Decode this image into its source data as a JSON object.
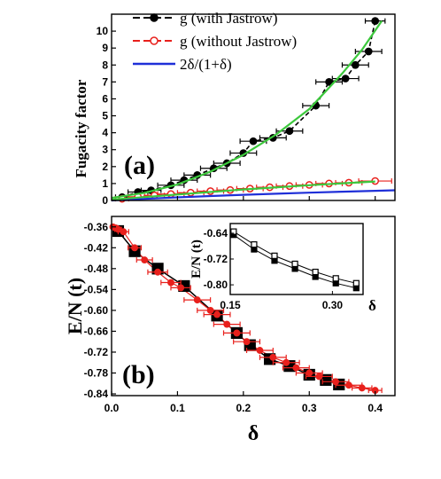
{
  "chart_data": [
    {
      "id": "panel-a",
      "type": "line",
      "panel_label": "(a)",
      "xlabel": "",
      "ylabel": "Fugacity factor",
      "xlim": [
        0.0,
        0.43
      ],
      "ylim": [
        0,
        11
      ],
      "yticks": [
        0,
        1,
        2,
        3,
        4,
        5,
        6,
        7,
        8,
        9,
        10
      ],
      "legend_position": "top-left",
      "series": [
        {
          "name": "g (with Jastrow)",
          "marker": "filled-circle",
          "line": "dashed",
          "color": "#000000",
          "x": [
            0.016,
            0.04,
            0.06,
            0.09,
            0.11,
            0.13,
            0.155,
            0.175,
            0.2,
            0.215,
            0.245,
            0.27,
            0.31,
            0.33,
            0.355,
            0.37,
            0.39,
            0.4
          ],
          "y": [
            0.2,
            0.5,
            0.6,
            0.9,
            1.2,
            1.5,
            1.9,
            2.2,
            2.8,
            3.5,
            3.7,
            4.1,
            5.6,
            7.0,
            7.2,
            8.0,
            8.8,
            10.6
          ],
          "xerr": [
            0.01,
            0.015,
            0.015,
            0.02,
            0.02,
            0.02,
            0.02,
            0.02,
            0.02,
            0.02,
            0.02,
            0.02,
            0.02,
            0.02,
            0.02,
            0.02,
            0.02,
            0.015
          ]
        },
        {
          "name": "g (without Jastrow)",
          "marker": "open-circle",
          "line": "dashed",
          "color": "#e8201c",
          "x": [
            0.016,
            0.04,
            0.065,
            0.09,
            0.12,
            0.15,
            0.18,
            0.21,
            0.24,
            0.27,
            0.3,
            0.33,
            0.36,
            0.4
          ],
          "y": [
            0.1,
            0.22,
            0.3,
            0.38,
            0.46,
            0.55,
            0.62,
            0.7,
            0.78,
            0.85,
            0.92,
            1.0,
            1.05,
            1.15
          ],
          "xerr": [
            0.01,
            0.015,
            0.015,
            0.02,
            0.02,
            0.02,
            0.02,
            0.02,
            0.02,
            0.02,
            0.02,
            0.02,
            0.02,
            0.025
          ]
        },
        {
          "name": "2δ/(1+δ)",
          "marker": "none",
          "line": "solid",
          "color": "#1f2fd8",
          "x": [
            0.0,
            0.05,
            0.1,
            0.15,
            0.2,
            0.25,
            0.3,
            0.35,
            0.4,
            0.43
          ],
          "y": [
            0.0,
            0.095,
            0.182,
            0.261,
            0.333,
            0.4,
            0.462,
            0.519,
            0.571,
            0.601
          ]
        },
        {
          "name": "",
          "marker": "none",
          "line": "solid",
          "color": "#3cc83c",
          "x": [
            0.0,
            0.05,
            0.1,
            0.15,
            0.2,
            0.25,
            0.3,
            0.35,
            0.38,
            0.41
          ],
          "y": [
            0.15,
            0.45,
            0.95,
            1.7,
            2.7,
            3.9,
            5.4,
            7.5,
            8.9,
            10.6
          ]
        },
        {
          "name": "",
          "marker": "none",
          "line": "solid",
          "color": "#3cc83c",
          "x": [
            0.0,
            0.1,
            0.2,
            0.3,
            0.4
          ],
          "y": [
            0.05,
            0.35,
            0.65,
            0.9,
            1.12
          ]
        }
      ]
    },
    {
      "id": "panel-b",
      "type": "scatter",
      "panel_label": "(b)",
      "xlabel": "δ",
      "ylabel": "E/N (t)",
      "xlim": [
        0.0,
        0.43
      ],
      "ylim": [
        -0.845,
        -0.33
      ],
      "xticks": [
        0.0,
        0.1,
        0.2,
        0.3,
        0.4
      ],
      "xtick_labels": [
        "0.0",
        "0.1",
        "0.2",
        "0.3",
        "0.4"
      ],
      "yticks": [
        -0.36,
        -0.42,
        -0.48,
        -0.54,
        -0.6,
        -0.66,
        -0.72,
        -0.78,
        -0.84
      ],
      "ytick_labels": [
        "-0.36",
        "-0.42",
        "-0.48",
        "-0.54",
        "-0.60",
        "-0.66",
        "-0.72",
        "-0.78",
        "-0.84"
      ],
      "series": [
        {
          "name": "",
          "marker": "filled-square",
          "color": "#000000",
          "x": [
            0.01,
            0.035,
            0.07,
            0.11,
            0.16,
            0.19,
            0.21,
            0.24,
            0.27,
            0.3,
            0.325,
            0.345
          ],
          "y": [
            -0.372,
            -0.43,
            -0.48,
            -0.53,
            -0.615,
            -0.665,
            -0.7,
            -0.74,
            -0.76,
            -0.785,
            -0.8,
            -0.813
          ]
        },
        {
          "name": "",
          "marker": "filled-circle",
          "color": "#e8201c",
          "x": [
            0.002,
            0.006,
            0.01,
            0.018,
            0.035,
            0.05,
            0.07,
            0.09,
            0.105,
            0.13,
            0.15,
            0.16,
            0.175,
            0.19,
            0.205,
            0.225,
            0.245,
            0.265,
            0.28,
            0.3,
            0.315,
            0.34,
            0.36,
            0.38,
            0.4
          ],
          "y": [
            -0.36,
            -0.363,
            -0.367,
            -0.374,
            -0.42,
            -0.455,
            -0.49,
            -0.52,
            -0.535,
            -0.57,
            -0.6,
            -0.612,
            -0.64,
            -0.665,
            -0.69,
            -0.715,
            -0.735,
            -0.75,
            -0.765,
            -0.78,
            -0.79,
            -0.805,
            -0.815,
            -0.823,
            -0.83
          ],
          "xerr": [
            0.002,
            0.004,
            0.005,
            0.008,
            0.01,
            0.012,
            0.015,
            0.015,
            0.015,
            0.02,
            0.02,
            0.02,
            0.02,
            0.02,
            0.02,
            0.02,
            0.02,
            0.02,
            0.02,
            0.02,
            0.02,
            0.02,
            0.02,
            0.015,
            0.01
          ]
        }
      ]
    },
    {
      "id": "panel-b-inset",
      "type": "line",
      "xlabel": "δ",
      "ylabel": "E/N (t)",
      "xlim": [
        0.15,
        0.345
      ],
      "ylim": [
        -0.83,
        -0.61
      ],
      "xticks": [
        0.15,
        0.3
      ],
      "xtick_labels": [
        "0.15",
        "0.30"
      ],
      "yticks": [
        -0.64,
        -0.72,
        -0.8
      ],
      "ytick_labels": [
        "-0.64",
        "-0.72",
        "-0.80"
      ],
      "series": [
        {
          "name": "",
          "marker": "filled-square",
          "color": "#000000",
          "x": [
            0.155,
            0.185,
            0.215,
            0.245,
            0.275,
            0.305,
            0.335
          ],
          "y": [
            -0.645,
            -0.69,
            -0.725,
            -0.75,
            -0.775,
            -0.795,
            -0.81
          ]
        },
        {
          "name": "",
          "marker": "open-square",
          "color": "#000000",
          "x": [
            0.155,
            0.185,
            0.215,
            0.245,
            0.275,
            0.305,
            0.335
          ],
          "y": [
            -0.635,
            -0.675,
            -0.71,
            -0.735,
            -0.76,
            -0.78,
            -0.795
          ]
        }
      ]
    }
  ]
}
